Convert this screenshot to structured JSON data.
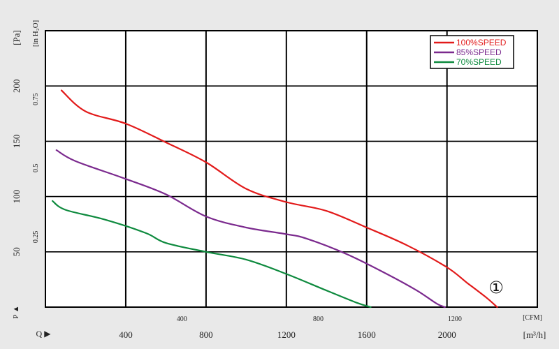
{
  "chart_data": {
    "type": "line",
    "axes": {
      "y_pa": {
        "label": "[Pa]",
        "ticks": [
          "50",
          "100",
          "150",
          "200"
        ],
        "range": [
          0,
          250
        ]
      },
      "y_inh2o": {
        "label": "[in H₂O]",
        "ticks": [
          "0.25",
          "0.5",
          "0.75"
        ]
      },
      "x_cfm": {
        "label": "[CFM]",
        "ticks": [
          "400",
          "800",
          "1200"
        ]
      },
      "x_m3h": {
        "label": "[m³/h]",
        "ticks": [
          "400",
          "800",
          "1200",
          "1600",
          "2000"
        ],
        "range": [
          0,
          2450
        ]
      },
      "p_label": "P ▲",
      "q_label": "Q ▶"
    },
    "marker": "①",
    "grid": true,
    "legend_position": "top-right",
    "series": [
      {
        "name": "100%SPEED",
        "color": "#e21a1a",
        "points": [
          [
            80,
            196
          ],
          [
            200,
            177
          ],
          [
            400,
            166
          ],
          [
            600,
            149
          ],
          [
            800,
            131
          ],
          [
            1000,
            107
          ],
          [
            1200,
            95
          ],
          [
            1400,
            87
          ],
          [
            1600,
            72
          ],
          [
            1800,
            56
          ],
          [
            2000,
            36
          ],
          [
            2100,
            22
          ],
          [
            2200,
            8
          ],
          [
            2250,
            0
          ]
        ]
      },
      {
        "name": "85%SPEED",
        "color": "#7b2a8e",
        "points": [
          [
            55,
            142
          ],
          [
            150,
            132
          ],
          [
            400,
            116
          ],
          [
            600,
            102
          ],
          [
            800,
            82
          ],
          [
            1000,
            72
          ],
          [
            1200,
            66
          ],
          [
            1300,
            62
          ],
          [
            1500,
            48
          ],
          [
            1700,
            30
          ],
          [
            1850,
            15
          ],
          [
            1950,
            3
          ],
          [
            1990,
            0
          ]
        ]
      },
      {
        "name": "70%SPEED",
        "color": "#0e8a3e",
        "points": [
          [
            35,
            96
          ],
          [
            100,
            88
          ],
          [
            300,
            79
          ],
          [
            500,
            67
          ],
          [
            600,
            58
          ],
          [
            800,
            50
          ],
          [
            1000,
            43
          ],
          [
            1200,
            30
          ],
          [
            1400,
            15
          ],
          [
            1550,
            4
          ],
          [
            1620,
            0
          ]
        ]
      }
    ]
  }
}
